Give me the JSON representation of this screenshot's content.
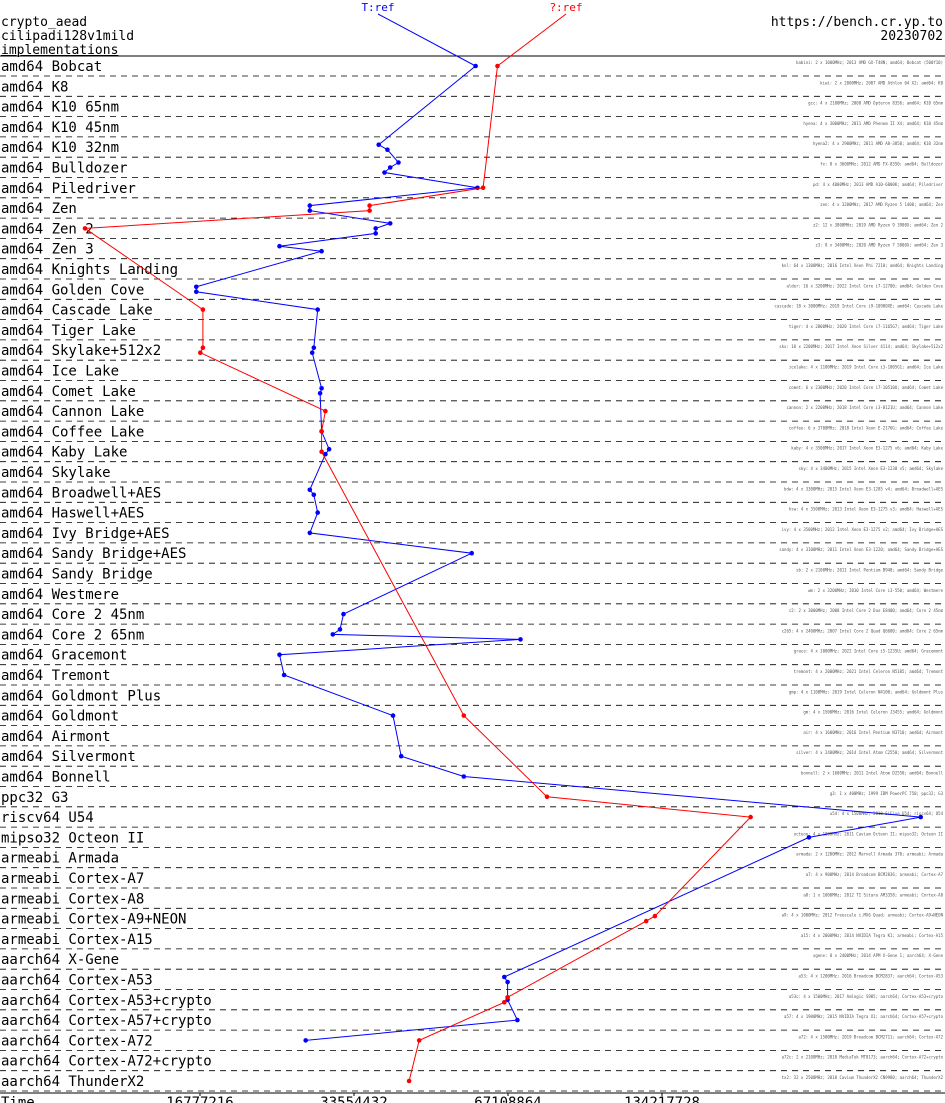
{
  "header": {
    "line1": "crypto_aead",
    "line2": "cilipadi128v1mild",
    "line3": "implementations",
    "url": "https://bench.cr.yp.to",
    "date": "20230702"
  },
  "chart_data": {
    "type": "line",
    "series": [
      {
        "name": "T:ref",
        "color": "#0000ff"
      },
      {
        "name": "?:ref",
        "color": "#ff0000"
      }
    ],
    "xlabel": "Time",
    "x_scale": "log2",
    "xticks": [
      16777216,
      33554432,
      67108864,
      134217728
    ],
    "xtick_labels": [
      "16777216",
      "33554432",
      "67108864",
      "134217728"
    ],
    "rows": [
      {
        "label": "amd64 Bobcat",
        "t": [
          58000000
        ],
        "q": [
          64000000
        ]
      },
      {
        "label": "amd64 K8",
        "t": [],
        "q": []
      },
      {
        "label": "amd64 K10 65nm",
        "t": [],
        "q": []
      },
      {
        "label": "amd64 K10 45nm",
        "t": [],
        "q": []
      },
      {
        "label": "amd64 K10 32nm",
        "t": [
          37500000,
          39000000
        ],
        "q": []
      },
      {
        "label": "amd64 Bulldozer",
        "t": [
          41000000,
          39500000,
          38500000
        ],
        "q": []
      },
      {
        "label": "amd64 Piledriver",
        "t": [
          58500000
        ],
        "q": [
          60000000
        ]
      },
      {
        "label": "amd64 Zen",
        "t": [
          27500000,
          27500000
        ],
        "q": [
          36000000,
          36000000
        ]
      },
      {
        "label": "amd64 Zen 2",
        "t": [
          39500000,
          37000000,
          37000000
        ],
        "q": [
          10000000
        ]
      },
      {
        "label": "amd64 Zen 3",
        "t": [
          24000000,
          29000000
        ],
        "q": []
      },
      {
        "label": "amd64 Knights Landing",
        "t": [],
        "q": []
      },
      {
        "label": "amd64 Golden Cove",
        "t": [
          16500000,
          16500000
        ],
        "q": []
      },
      {
        "label": "amd64 Cascade Lake",
        "t": [
          28500000
        ],
        "q": [
          17000000
        ]
      },
      {
        "label": "amd64 Tiger Lake",
        "t": [],
        "q": []
      },
      {
        "label": "amd64 Skylake+512x2",
        "t": [
          28000000,
          27800000
        ],
        "q": [
          17000000,
          16800000
        ]
      },
      {
        "label": "amd64 Ice Lake",
        "t": [],
        "q": []
      },
      {
        "label": "amd64 Comet Lake",
        "t": [
          29000000,
          28800000
        ],
        "q": []
      },
      {
        "label": "amd64 Cannon Lake",
        "t": [],
        "q": [
          29500000
        ]
      },
      {
        "label": "amd64 Coffee Lake",
        "t": [
          29000000
        ],
        "q": [
          29000000
        ]
      },
      {
        "label": "amd64 Kaby Lake",
        "t": [
          30000000,
          29500000
        ],
        "q": [
          29000000
        ]
      },
      {
        "label": "amd64 Skylake",
        "t": [],
        "q": []
      },
      {
        "label": "amd64 Broadwell+AES",
        "t": [
          27500000,
          28000000
        ],
        "q": []
      },
      {
        "label": "amd64 Haswell+AES",
        "t": [
          28500000
        ],
        "q": []
      },
      {
        "label": "amd64 Ivy Bridge+AES",
        "t": [
          27500000
        ],
        "q": []
      },
      {
        "label": "amd64 Sandy Bridge+AES",
        "t": [
          57000000
        ],
        "q": []
      },
      {
        "label": "amd64 Sandy Bridge",
        "t": [],
        "q": []
      },
      {
        "label": "amd64 Westmere",
        "t": [],
        "q": []
      },
      {
        "label": "amd64 Core 2 45nm",
        "t": [
          32000000
        ],
        "q": []
      },
      {
        "label": "amd64 Core 2 65nm",
        "t": [
          31500000,
          30500000,
          71000000
        ],
        "q": []
      },
      {
        "label": "amd64 Gracemont",
        "t": [
          24000000
        ],
        "q": []
      },
      {
        "label": "amd64 Tremont",
        "t": [
          24500000
        ],
        "q": []
      },
      {
        "label": "amd64 Goldmont Plus",
        "t": [],
        "q": []
      },
      {
        "label": "amd64 Goldmont",
        "t": [
          40000000
        ],
        "q": [
          55000000
        ]
      },
      {
        "label": "amd64 Airmont",
        "t": [],
        "q": []
      },
      {
        "label": "amd64 Silvermont",
        "t": [
          41500000
        ],
        "q": []
      },
      {
        "label": "amd64 Bonnell",
        "t": [
          55000000
        ],
        "q": []
      },
      {
        "label": "ppc32 G3",
        "t": [],
        "q": [
          80000000
        ]
      },
      {
        "label": "riscv64 U54",
        "t": [
          430000000
        ],
        "q": [
          200000000
        ]
      },
      {
        "label": "mipso32 Octeon II",
        "t": [
          260000000
        ],
        "q": []
      },
      {
        "label": "armeabi Armada",
        "t": [],
        "q": []
      },
      {
        "label": "armeabi Cortex-A7",
        "t": [],
        "q": []
      },
      {
        "label": "armeabi Cortex-A8",
        "t": [],
        "q": []
      },
      {
        "label": "armeabi Cortex-A9+NEON",
        "t": [],
        "q": [
          130000000,
          125000000
        ]
      },
      {
        "label": "armeabi Cortex-A15",
        "t": [],
        "q": []
      },
      {
        "label": "aarch64 X-Gene",
        "t": [],
        "q": []
      },
      {
        "label": "aarch64 Cortex-A53",
        "t": [
          66000000,
          67000000
        ],
        "q": []
      },
      {
        "label": "aarch64 Cortex-A53+crypto",
        "t": [
          67000000
        ],
        "q": [
          67000000,
          66000000
        ]
      },
      {
        "label": "aarch64 Cortex-A57+crypto",
        "t": [
          70000000
        ],
        "q": []
      },
      {
        "label": "aarch64 Cortex-A72",
        "t": [
          27000000
        ],
        "q": [
          45000000
        ]
      },
      {
        "label": "aarch64 Cortex-A72+crypto",
        "t": [],
        "q": []
      },
      {
        "label": "aarch64 ThunderX2",
        "t": [],
        "q": [
          43000000
        ]
      }
    ],
    "machine_lines": [
      "kabini: 2 x 1000MHz; 2013 AMD GX-T48N; amd64; Bobcat (500f10)",
      "kiwi: 2 x 2000MHz; 2007 AMD Athlon 64 X2; amd64; K8",
      "gcc: 4 x 2100MHz; 2008 AMD Opteron 8356; amd64; K10 65nm",
      "hyena: 4 x 3000MHz; 2011 AMD Phenom II X4; amd64; K10 45nm",
      "hyena2: 4 x 2900MHz; 2011 AMD A8-3850; amd64; K10 32nm",
      "fx: 8 x 3600MHz; 2012 AMD FX-8350; amd64; Bulldozer",
      "pd: 4 x 4000MHz; 2013 AMD A10-6800K; amd64; Piledriver",
      "zen: 4 x 3200MHz; 2017 AMD Ryzen 5 1400; amd64; Zen",
      "z2: 12 x 3800MHz; 2019 AMD Ryzen 9 3900X; amd64; Zen 2",
      "z3: 8 x 3400MHz; 2020 AMD Ryzen 7 5800X; amd64; Zen 3",
      "knl: 64 x 1300MHz; 2016 Intel Xeon Phi 7210; amd64; Knights Landing",
      "alder: 16 x 3200MHz; 2022 Intel Core i7-12700; amd64; Golden Cove",
      "cascade: 18 x 3000MHz; 2019 Intel Core i9-10980XE; amd64; Cascade Lake",
      "tiger: 4 x 2800MHz; 2020 Intel Core i7-1165G7; amd64; Tiger Lake",
      "skx: 10 x 2200MHz; 2017 Intel Xeon Silver 4114; amd64; Skylake+512x2",
      "icelake: 4 x 1100MHz; 2019 Intel Core i3-1005G1; amd64; Ice Lake",
      "comet: 6 x 2300MHz; 2020 Intel Core i7-10510U; amd64; Comet Lake",
      "cannon: 2 x 2200MHz; 2018 Intel Core i3-8121U; amd64; Cannon Lake",
      "coffee: 6 x 3700MHz; 2018 Intel Xeon E-2176G; amd64; Coffee Lake",
      "kaby: 4 x 3500MHz; 2017 Intel Xeon E3-1275 v6; amd64; Kaby Lake",
      "sky: 4 x 3400MHz; 2015 Intel Xeon E3-1230 v5; amd64; Skylake",
      "bdw: 4 x 3300MHz; 2015 Intel Xeon E3-1285 v4; amd64; Broadwell+AES",
      "hsw: 4 x 3500MHz; 2013 Intel Xeon E3-1275 v3; amd64; Haswell+AES",
      "ivy: 4 x 3500MHz; 2012 Intel Xeon E3-1275 v2; amd64; Ivy Bridge+AES",
      "sandy: 4 x 3100MHz; 2011 Intel Xeon E3-1220; amd64; Sandy Bridge+AES",
      "sb: 2 x 2100MHz; 2011 Intel Pentium B940; amd64; Sandy Bridge",
      "wm: 2 x 3200MHz; 2010 Intel Core i3-550; amd64; Westmere",
      "c2: 2 x 3000MHz; 2008 Intel Core 2 Duo E8400; amd64; Core 2 45nm",
      "c265: 4 x 2400MHz; 2007 Intel Core 2 Quad Q6600; amd64; Core 2 65nm",
      "grace: 4 x 1800MHz; 2022 Intel Core i5-1235U; amd64; Gracemont",
      "tremont: 4 x 2000MHz; 2021 Intel Celeron N5105; amd64; Tremont",
      "gmp: 4 x 1100MHz; 2019 Intel Celeron N4100; amd64; Goldmont Plus",
      "gm: 4 x 1500MHz; 2016 Intel Celeron J3455; amd64; Goldmont",
      "air: 4 x 1600MHz; 2016 Intel Pentium N3710; amd64; Airmont",
      "silver: 4 x 2400MHz; 2014 Intel Atom C2550; amd64; Silvermont",
      "bonnell: 2 x 1600MHz; 2011 Intel Atom D2550; amd64; Bonnell",
      "g3: 1 x 400MHz; 1999 IBM PowerPC 750; ppc32; G3",
      "u54: 4 x 1500MHz; 2018 SiFive U54; riscv64; U54",
      "octeon: 4 x 1000MHz; 2011 Cavium Octeon II; mipso32; Octeon II",
      "armada: 2 x 1200MHz; 2012 Marvell Armada 370; armeabi; Armada",
      "a7: 4 x 900MHz; 2014 Broadcom BCM2836; armeabi; Cortex-A7",
      "a8: 1 x 1000MHz; 2012 TI Sitara AM3358; armeabi; Cortex-A8",
      "a9: 4 x 1000MHz; 2012 Freescale i.MX6 Quad; armeabi; Cortex-A9+NEON",
      "a15: 4 x 2000MHz; 2014 NVIDIA Tegra K1; armeabi; Cortex-A15",
      "xgene: 8 x 2400MHz; 2014 APM X-Gene 1; aarch64; X-Gene",
      "a53: 4 x 1200MHz; 2016 Broadcom BCM2837; aarch64; Cortex-A53",
      "a53c: 4 x 1500MHz; 2017 Amlogic S905; aarch64; Cortex-A53+crypto",
      "a57: 4 x 1900MHz; 2015 NVIDIA Tegra X1; aarch64; Cortex-A57+crypto",
      "a72: 4 x 1500MHz; 2019 Broadcom BCM2711; aarch64; Cortex-A72",
      "a72c: 2 x 2100MHz; 2018 MediaTek MT8173; aarch64; Cortex-A72+crypto",
      "tx2: 32 x 2500MHz; 2018 Cavium ThunderX2 CN9980; aarch64; ThunderX2"
    ]
  }
}
